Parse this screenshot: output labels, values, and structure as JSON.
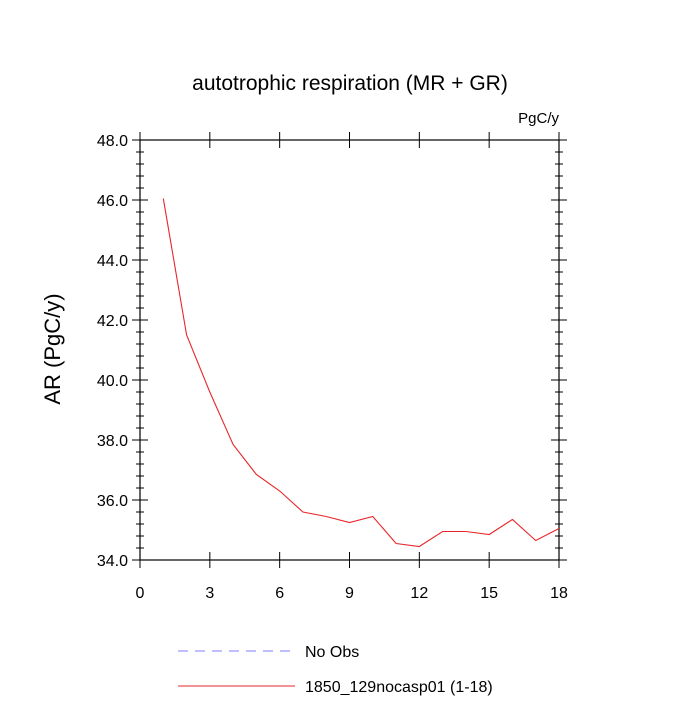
{
  "chart_data": {
    "type": "line",
    "title": "autotrophic respiration (MR + GR)",
    "units_label": "PgC/y",
    "ylabel": "AR  (PgC/y)",
    "xlabel": "",
    "xlim": [
      0,
      18
    ],
    "ylim": [
      34.0,
      48.0
    ],
    "x_ticks": [
      0,
      3,
      6,
      9,
      12,
      15,
      18
    ],
    "x_tick_labels": [
      "0",
      "3",
      "6",
      "9",
      "12",
      "15",
      "18"
    ],
    "y_ticks": [
      34.0,
      36.0,
      38.0,
      40.0,
      42.0,
      44.0,
      46.0,
      48.0
    ],
    "y_tick_labels": [
      "34.0",
      "36.0",
      "38.0",
      "40.0",
      "42.0",
      "44.0",
      "46.0",
      "48.0"
    ],
    "grid": false,
    "legend_position": "bottom",
    "series": [
      {
        "name": "1850_129nocasp01 (1-18)",
        "color": "#e8262a",
        "style": "solid",
        "x": [
          1,
          2,
          3,
          4,
          5,
          6,
          7,
          8,
          9,
          10,
          11,
          12,
          13,
          14,
          15,
          16,
          17,
          18
        ],
        "values": [
          46.05,
          41.5,
          39.6,
          37.85,
          36.85,
          36.3,
          35.6,
          35.45,
          35.25,
          35.45,
          34.55,
          34.45,
          34.95,
          34.95,
          34.85,
          35.35,
          34.65,
          35.05
        ]
      }
    ],
    "legend": [
      {
        "label": "No Obs",
        "color": "#7f7fff",
        "style": "dashed"
      },
      {
        "label": "1850_129nocasp01 (1-18)",
        "color": "#e8262a",
        "style": "solid"
      }
    ]
  }
}
